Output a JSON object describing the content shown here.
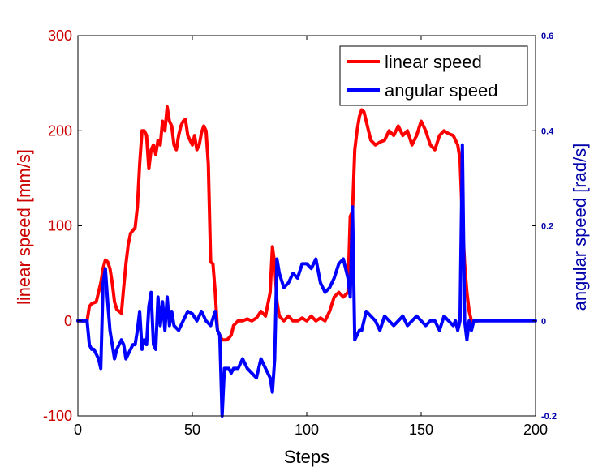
{
  "colors": {
    "linear": "#ff0000",
    "angular": "#0000ff",
    "left_axis": "#cc0000",
    "right_axis": "#0000aa",
    "frame": "#000000"
  },
  "chart_data": {
    "type": "line",
    "xlabel": "Steps",
    "ylabel_left": "linear speed [mm/s]",
    "ylabel_right": "angular speed [rad/s]",
    "xlim": [
      0,
      200
    ],
    "ylim_left": [
      -100,
      300
    ],
    "ylim_right": [
      -0.2,
      0.6
    ],
    "x_ticks": [
      "0",
      "50",
      "100",
      "150",
      "200"
    ],
    "y_left_ticks": [
      "-100",
      "0",
      "100",
      "200",
      "300"
    ],
    "y_right_ticks": [
      "-0.2",
      "0",
      "0.2",
      "0.4",
      "0.6"
    ],
    "legend_position": "top-right",
    "grid": false,
    "series": [
      {
        "name": "linear speed",
        "axis": "left",
        "x": [
          0,
          2,
          4,
          5,
          6,
          8,
          10,
          11,
          12,
          13,
          14,
          15,
          16,
          17,
          18,
          19,
          20,
          21,
          22,
          23,
          24,
          25,
          26,
          27,
          28,
          29,
          30,
          31,
          32,
          33,
          34,
          35,
          36,
          37,
          38,
          39,
          40,
          41,
          42,
          43,
          44,
          45,
          46,
          47,
          48,
          49,
          50,
          51,
          52,
          53,
          54,
          55,
          56,
          57,
          58,
          59,
          60,
          61,
          62,
          63,
          64,
          65,
          66,
          67,
          68,
          70,
          72,
          74,
          76,
          78,
          80,
          82,
          84,
          85,
          86,
          87,
          88,
          90,
          92,
          94,
          96,
          98,
          100,
          102,
          104,
          106,
          108,
          110,
          112,
          114,
          116,
          118,
          119,
          120,
          121,
          122,
          123,
          124,
          125,
          126,
          128,
          130,
          132,
          134,
          136,
          138,
          140,
          142,
          144,
          146,
          148,
          150,
          152,
          154,
          156,
          158,
          160,
          162,
          164,
          166,
          167,
          168,
          169,
          170,
          171,
          172,
          173,
          174,
          175
        ],
        "values": [
          0,
          0,
          0,
          15,
          18,
          20,
          40,
          55,
          64,
          62,
          55,
          40,
          20,
          12,
          10,
          8,
          35,
          60,
          80,
          92,
          95,
          98,
          120,
          165,
          200,
          200,
          195,
          160,
          180,
          185,
          175,
          190,
          185,
          210,
          200,
          225,
          210,
          205,
          185,
          180,
          195,
          205,
          210,
          212,
          195,
          190,
          185,
          195,
          180,
          185,
          198,
          205,
          200,
          165,
          62,
          60,
          30,
          -10,
          -15,
          -20,
          -20,
          -20,
          -18,
          -15,
          -5,
          0,
          0,
          2,
          0,
          3,
          10,
          5,
          30,
          78,
          60,
          20,
          5,
          0,
          5,
          0,
          0,
          3,
          0,
          5,
          0,
          3,
          0,
          10,
          25,
          30,
          25,
          30,
          110,
          115,
          180,
          200,
          215,
          222,
          220,
          210,
          190,
          185,
          188,
          190,
          200,
          195,
          205,
          195,
          200,
          185,
          195,
          210,
          200,
          185,
          180,
          195,
          200,
          197,
          195,
          185,
          170,
          105,
          60,
          30,
          10,
          0,
          0,
          0,
          0
        ]
      },
      {
        "name": "angular speed",
        "axis": "right",
        "x": [
          0,
          2,
          4,
          5,
          6,
          7,
          8,
          9,
          10,
          11,
          12,
          13,
          14,
          15,
          16,
          17,
          18,
          19,
          20,
          21,
          22,
          23,
          24,
          25,
          26,
          27,
          28,
          29,
          30,
          31,
          32,
          33,
          34,
          35,
          36,
          37,
          38,
          39,
          40,
          41,
          42,
          44,
          46,
          48,
          50,
          52,
          54,
          56,
          58,
          60,
          61,
          62,
          63,
          64,
          65,
          66,
          67,
          68,
          70,
          72,
          74,
          76,
          78,
          80,
          82,
          84,
          85,
          86,
          87,
          88,
          90,
          92,
          94,
          96,
          98,
          100,
          102,
          104,
          106,
          108,
          110,
          112,
          114,
          116,
          118,
          119,
          120,
          121,
          122,
          123,
          124,
          125,
          126,
          128,
          130,
          132,
          134,
          136,
          138,
          140,
          142,
          144,
          146,
          148,
          150,
          152,
          154,
          156,
          158,
          160,
          162,
          164,
          165,
          166,
          167,
          168,
          169,
          170,
          171,
          172,
          173,
          174,
          176,
          180,
          185,
          190,
          195,
          200
        ],
        "values": [
          0,
          0,
          0,
          -0.05,
          -0.06,
          -0.06,
          -0.07,
          -0.08,
          -0.1,
          0.08,
          0.11,
          0.04,
          -0.02,
          -0.05,
          -0.08,
          -0.06,
          -0.05,
          -0.04,
          -0.05,
          -0.08,
          -0.07,
          -0.06,
          -0.05,
          -0.05,
          -0.02,
          0.02,
          -0.06,
          -0.04,
          -0.05,
          0.03,
          0.06,
          -0.05,
          -0.06,
          0.05,
          -0.01,
          0.04,
          -0.02,
          0.05,
          -0.01,
          0.02,
          -0.01,
          -0.02,
          0.0,
          0.02,
          0.015,
          0.0,
          0.02,
          0.0,
          -0.01,
          0.02,
          -0.02,
          -0.03,
          -0.2,
          -0.1,
          -0.1,
          -0.1,
          -0.11,
          -0.1,
          -0.1,
          -0.08,
          -0.1,
          -0.11,
          -0.12,
          -0.08,
          -0.1,
          -0.12,
          -0.15,
          -0.08,
          0.13,
          0.1,
          0.07,
          0.08,
          0.1,
          0.09,
          0.12,
          0.12,
          0.11,
          0.13,
          0.08,
          0.06,
          0.07,
          0.09,
          0.12,
          0.13,
          0.09,
          0.05,
          0.24,
          -0.04,
          -0.03,
          -0.02,
          -0.02,
          0.0,
          0.02,
          0.01,
          0.0,
          -0.02,
          0.01,
          0.0,
          -0.01,
          0.0,
          0.01,
          -0.01,
          0.0,
          0.01,
          0.0,
          -0.01,
          0.0,
          0.0,
          -0.02,
          0.01,
          0.0,
          -0.01,
          0.0,
          -0.02,
          0.0,
          0.37,
          0.0,
          -0.04,
          0.0,
          -0.02,
          0.0,
          0.0,
          0.0,
          0.0,
          0.0,
          0.0,
          0.0,
          0.0
        ]
      }
    ]
  }
}
